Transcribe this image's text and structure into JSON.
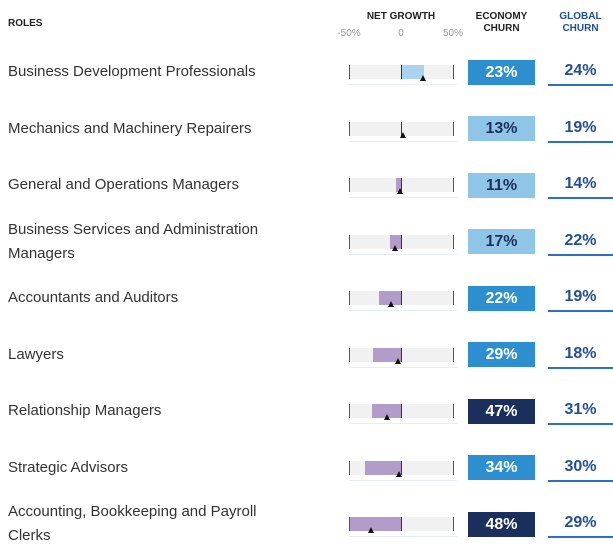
{
  "header": {
    "roles": "ROLES",
    "net_growth": "NET GROWTH",
    "economy_churn": "ECONOMY CHURN",
    "global_churn": "GLOBAL CHURN"
  },
  "net_growth_axis": {
    "xlim": [
      -50,
      50
    ],
    "xticks": [
      {
        "value": -50,
        "label": "-50%"
      },
      0,
      {
        "value": 50,
        "label": "50%"
      }
    ],
    "positive_color": "#a9d3ef",
    "negative_color": "#b29cc9"
  },
  "rows": [
    {
      "role": "Business Development Professionals",
      "net_growth": 22,
      "marker": 21,
      "economy_churn": "23%",
      "economy_churn_color": "#2d8fcf",
      "global_churn": "24%"
    },
    {
      "role": "Mechanics and Machinery Repairers",
      "net_growth": 1,
      "marker": 2,
      "economy_churn": "13%",
      "economy_churn_color": "#8fc6e8",
      "global_churn": "19%"
    },
    {
      "role": "General and Operations Managers",
      "net_growth": -5,
      "marker": -1,
      "economy_churn": "11%",
      "economy_churn_color": "#8fc6e8",
      "global_churn": "14%"
    },
    {
      "role": "Business Services and Administration Managers",
      "net_growth": -11,
      "marker": -6,
      "economy_churn": "17%",
      "economy_churn_color": "#8fc6e8",
      "global_churn": "22%"
    },
    {
      "role": "Accountants and Auditors",
      "net_growth": -21,
      "marker": -10,
      "economy_churn": "22%",
      "economy_churn_color": "#2d8fcf",
      "global_churn": "19%"
    },
    {
      "role": "Lawyers",
      "net_growth": -27,
      "marker": -3,
      "economy_churn": "29%",
      "economy_churn_color": "#2d8fcf",
      "global_churn": "18%"
    },
    {
      "role": "Relationship Managers",
      "net_growth": -28,
      "marker": -13,
      "economy_churn": "47%",
      "economy_churn_color": "#1b2f5c",
      "global_churn": "31%"
    },
    {
      "role": "Strategic Advisors",
      "net_growth": -35,
      "marker": -2,
      "economy_churn": "34%",
      "economy_churn_color": "#2d8fcf",
      "global_churn": "30%"
    },
    {
      "role": "Accounting, Bookkeeping and Payroll Clerks",
      "net_growth": -50,
      "marker": -29,
      "economy_churn": "48%",
      "economy_churn_color": "#1b2f5c",
      "global_churn": "29%"
    }
  ]
}
